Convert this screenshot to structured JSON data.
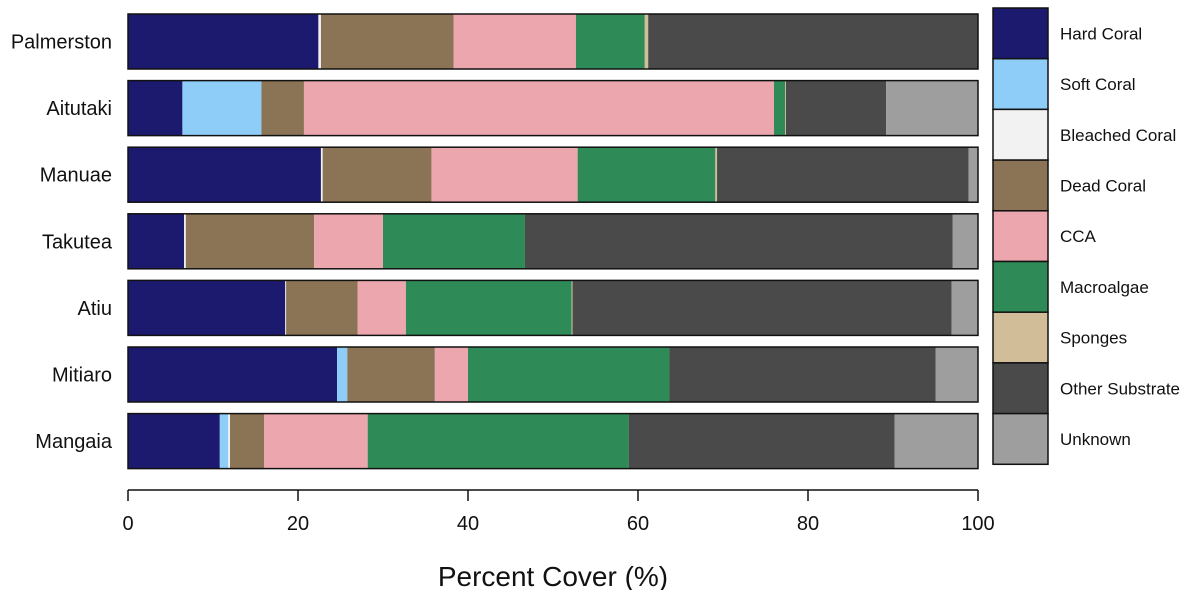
{
  "chart_data": {
    "type": "bar",
    "orientation": "horizontal",
    "stacked": true,
    "title": "",
    "xlabel": "Percent Cover (%)",
    "ylabel": "",
    "xlim": [
      0,
      100
    ],
    "x_ticks": [
      0,
      20,
      40,
      60,
      80,
      100
    ],
    "grid": false,
    "legend_position": "right",
    "categories": [
      "Palmerston",
      "Aitutaki",
      "Manuae",
      "Takutea",
      "Atiu",
      "Mitiaro",
      "Mangaia"
    ],
    "series": [
      {
        "name": "Hard Coral",
        "color": "#1c1a6e",
        "values": [
          22.4,
          6.4,
          22.7,
          6.6,
          18.5,
          24.6,
          10.8
        ]
      },
      {
        "name": "Soft Coral",
        "color": "#8ecdf8",
        "values": [
          0.0,
          9.3,
          0.0,
          0.0,
          0.0,
          1.2,
          1.0
        ]
      },
      {
        "name": "Bleached Coral",
        "color": "#f2f2f2",
        "values": [
          0.3,
          0.0,
          0.2,
          0.2,
          0.1,
          0.0,
          0.2
        ]
      },
      {
        "name": "Dead Coral",
        "color": "#8b7355",
        "values": [
          15.6,
          5.0,
          12.8,
          15.1,
          8.4,
          10.3,
          4.0
        ]
      },
      {
        "name": "CCA",
        "color": "#eca6ae",
        "values": [
          14.4,
          55.3,
          17.2,
          8.1,
          5.7,
          3.9,
          12.2
        ]
      },
      {
        "name": "Macroalgae",
        "color": "#2e8b57",
        "values": [
          8.1,
          1.3,
          16.2,
          16.7,
          19.5,
          23.7,
          30.7
        ]
      },
      {
        "name": "Sponges",
        "color": "#d2bd99",
        "values": [
          0.4,
          0.1,
          0.2,
          0.0,
          0.1,
          0.0,
          0.0
        ]
      },
      {
        "name": "Other Substrate",
        "color": "#4a4a4a",
        "values": [
          38.8,
          11.8,
          29.6,
          50.3,
          44.6,
          31.3,
          31.3
        ]
      },
      {
        "name": "Unknown",
        "color": "#9e9e9e",
        "values": [
          0.0,
          10.8,
          1.1,
          3.0,
          3.1,
          5.0,
          9.8
        ]
      }
    ]
  }
}
